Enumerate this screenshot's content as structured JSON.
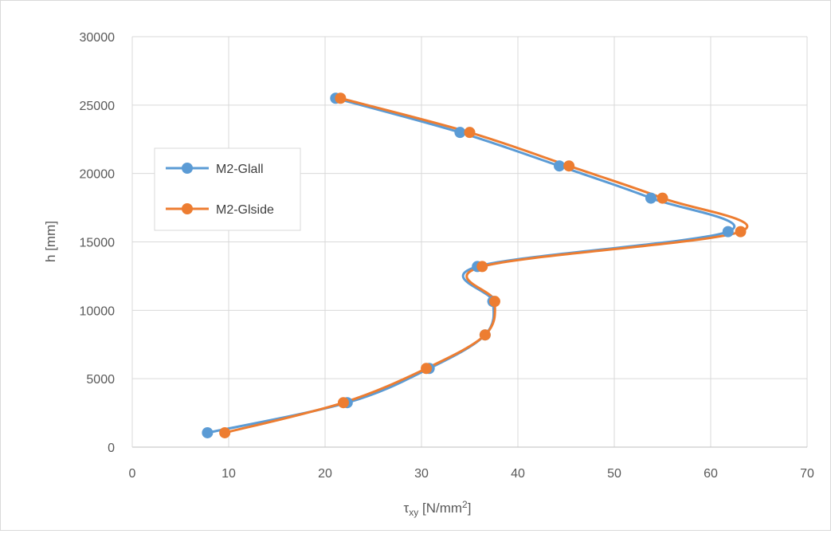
{
  "chart_data": {
    "type": "scatter",
    "title": "",
    "xlabel": {
      "main": "τ",
      "sub": "xy",
      "unit": " [N/mm",
      "sup": "2",
      "close": "]"
    },
    "ylabel": "h [mm]",
    "xlim": [
      0,
      70
    ],
    "ylim": [
      0,
      30000
    ],
    "xticks": [
      "0",
      "10",
      "20",
      "30",
      "40",
      "50",
      "60",
      "70"
    ],
    "yticks": [
      "0",
      "5000",
      "10000",
      "15000",
      "20000",
      "25000",
      "30000"
    ],
    "grid": true,
    "legend_position": "left",
    "smooth_lines": true,
    "series": [
      {
        "name": "M2-Glall",
        "color": "#5B9BD5",
        "x": [
          7.8,
          22.3,
          30.8,
          36.6,
          37.4,
          35.8,
          61.8,
          53.8,
          44.3,
          34.0,
          21.1
        ],
        "y": [
          1050,
          3250,
          5750,
          8200,
          10650,
          13200,
          15750,
          18200,
          20550,
          23000,
          25500
        ]
      },
      {
        "name": "M2-Glside",
        "color": "#ED7D31",
        "x": [
          9.6,
          21.9,
          30.5,
          36.6,
          37.6,
          36.3,
          63.1,
          55.0,
          45.3,
          35.0,
          21.6
        ],
        "y": [
          1050,
          3250,
          5750,
          8200,
          10650,
          13200,
          15750,
          18200,
          20550,
          23000,
          25500
        ]
      }
    ]
  }
}
